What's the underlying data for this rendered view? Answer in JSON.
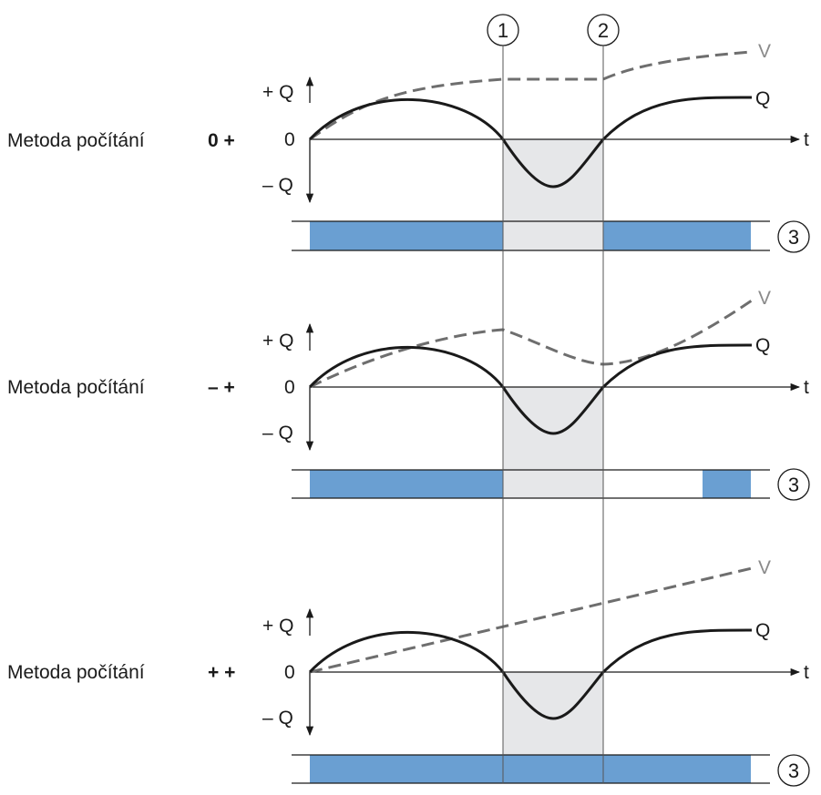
{
  "markers": [
    "1",
    "2",
    "3"
  ],
  "axis": {
    "t_label": "t",
    "plus_q": "+ Q",
    "zero": "0",
    "minus_q": "– Q",
    "q_curve_label": "Q",
    "v_curve_label": "V"
  },
  "panels": [
    {
      "method_label": "Metoda počítání",
      "method_code": "0 +"
    },
    {
      "method_label": "Metoda počítání",
      "method_code": "– +"
    },
    {
      "method_label": "Metoda počítání",
      "method_code": "+ +"
    }
  ],
  "colors": {
    "bar_fill": "#6a9fd2",
    "shade_fill": "#e6e7e9",
    "q_curve": "#1a1a1a",
    "v_curve": "#6e6e6e"
  }
}
